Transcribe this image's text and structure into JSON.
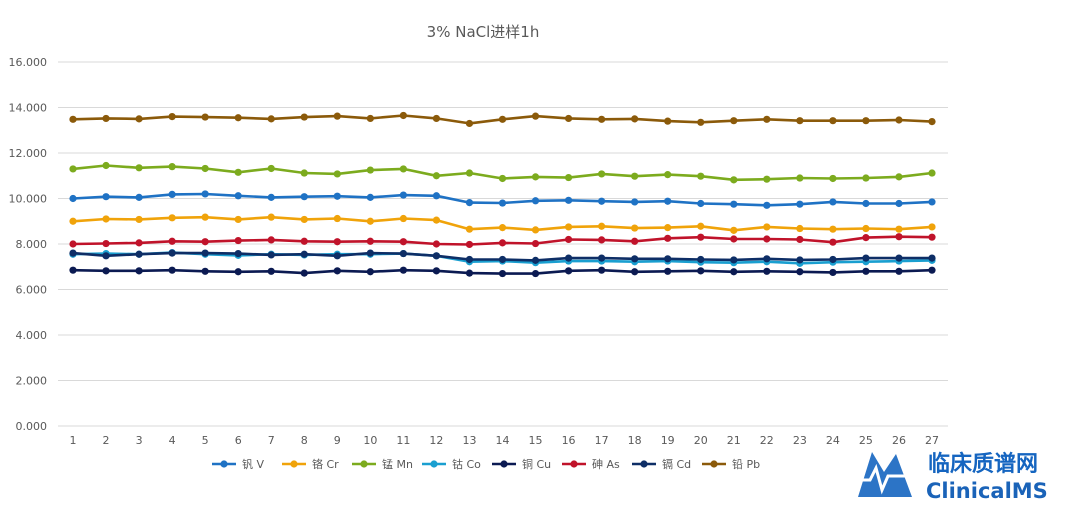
{
  "chart_data": {
    "type": "line",
    "title": "3% NaCl进样1h",
    "xlabel": "",
    "ylabel": "",
    "ylim": [
      0,
      16
    ],
    "yticks": [
      "0.000",
      "2.000",
      "4.000",
      "6.000",
      "8.000",
      "10.000",
      "12.000",
      "14.000",
      "16.000"
    ],
    "ytick_values": [
      0,
      2,
      4,
      6,
      8,
      10,
      12,
      14,
      16
    ],
    "categories": [
      "1",
      "2",
      "3",
      "4",
      "5",
      "6",
      "7",
      "8",
      "9",
      "10",
      "11",
      "12",
      "13",
      "14",
      "15",
      "16",
      "17",
      "18",
      "19",
      "20",
      "21",
      "22",
      "23",
      "24",
      "25",
      "26",
      "27"
    ],
    "grid": true,
    "legend_position": "bottom",
    "series": [
      {
        "name": "钒 V",
        "color": "#1f72c4",
        "values": [
          10.0,
          10.08,
          10.05,
          10.18,
          10.2,
          10.12,
          10.05,
          10.08,
          10.1,
          10.05,
          10.15,
          10.12,
          9.82,
          9.8,
          9.9,
          9.92,
          9.88,
          9.85,
          9.88,
          9.78,
          9.75,
          9.7,
          9.75,
          9.85,
          9.78,
          9.78,
          9.85
        ]
      },
      {
        "name": "铬 Cr",
        "color": "#f0a30a",
        "values": [
          9.0,
          9.1,
          9.08,
          9.15,
          9.18,
          9.08,
          9.18,
          9.08,
          9.12,
          9.0,
          9.12,
          9.05,
          8.65,
          8.72,
          8.62,
          8.75,
          8.78,
          8.7,
          8.72,
          8.78,
          8.6,
          8.75,
          8.68,
          8.65,
          8.68,
          8.65,
          8.75
        ]
      },
      {
        "name": "锰 Mn",
        "color": "#7cab1e",
        "values": [
          11.3,
          11.45,
          11.35,
          11.4,
          11.32,
          11.15,
          11.32,
          11.12,
          11.08,
          11.25,
          11.3,
          11.0,
          11.12,
          10.88,
          10.95,
          10.92,
          11.08,
          10.98,
          11.05,
          10.98,
          10.82,
          10.85,
          10.9,
          10.88,
          10.9,
          10.95,
          11.12
        ]
      },
      {
        "name": "钴 Co",
        "color": "#1a9fd0",
        "values": [
          7.55,
          7.58,
          7.55,
          7.62,
          7.55,
          7.5,
          7.55,
          7.52,
          7.55,
          7.55,
          7.58,
          7.48,
          7.22,
          7.25,
          7.18,
          7.25,
          7.25,
          7.22,
          7.25,
          7.2,
          7.18,
          7.22,
          7.15,
          7.2,
          7.22,
          7.25,
          7.28
        ]
      },
      {
        "name": "铜 Cu",
        "color": "#0b1a52",
        "values": [
          6.85,
          6.82,
          6.82,
          6.85,
          6.8,
          6.78,
          6.8,
          6.72,
          6.82,
          6.78,
          6.85,
          6.82,
          6.72,
          6.7,
          6.7,
          6.82,
          6.85,
          6.78,
          6.8,
          6.82,
          6.78,
          6.8,
          6.78,
          6.75,
          6.8,
          6.8,
          6.85
        ]
      },
      {
        "name": "砷 As",
        "color": "#c0132a",
        "values": [
          8.0,
          8.02,
          8.05,
          8.12,
          8.1,
          8.15,
          8.18,
          8.12,
          8.1,
          8.12,
          8.1,
          8.0,
          7.98,
          8.05,
          8.02,
          8.2,
          8.18,
          8.12,
          8.25,
          8.3,
          8.22,
          8.22,
          8.2,
          8.08,
          8.28,
          8.32,
          8.3
        ]
      },
      {
        "name": "镉 Cd",
        "color": "#0e2e66",
        "values": [
          7.6,
          7.48,
          7.55,
          7.6,
          7.6,
          7.58,
          7.52,
          7.55,
          7.48,
          7.6,
          7.58,
          7.48,
          7.32,
          7.32,
          7.28,
          7.38,
          7.38,
          7.35,
          7.35,
          7.32,
          7.3,
          7.35,
          7.3,
          7.32,
          7.38,
          7.38,
          7.38
        ]
      },
      {
        "name": "铅 Pb",
        "color": "#8b5a0a",
        "values": [
          13.48,
          13.52,
          13.5,
          13.6,
          13.58,
          13.55,
          13.5,
          13.58,
          13.62,
          13.52,
          13.65,
          13.52,
          13.3,
          13.48,
          13.62,
          13.52,
          13.48,
          13.5,
          13.4,
          13.35,
          13.42,
          13.48,
          13.42,
          13.42,
          13.42,
          13.45,
          13.38
        ]
      }
    ]
  },
  "watermark": {
    "cn_text": "临床质谱网",
    "en_text": "ClinicalMS",
    "logo_icon": "mountain-pulse-logo-icon",
    "colors": {
      "primary": "#1565c0",
      "secondary": "#6aa6e0"
    }
  }
}
